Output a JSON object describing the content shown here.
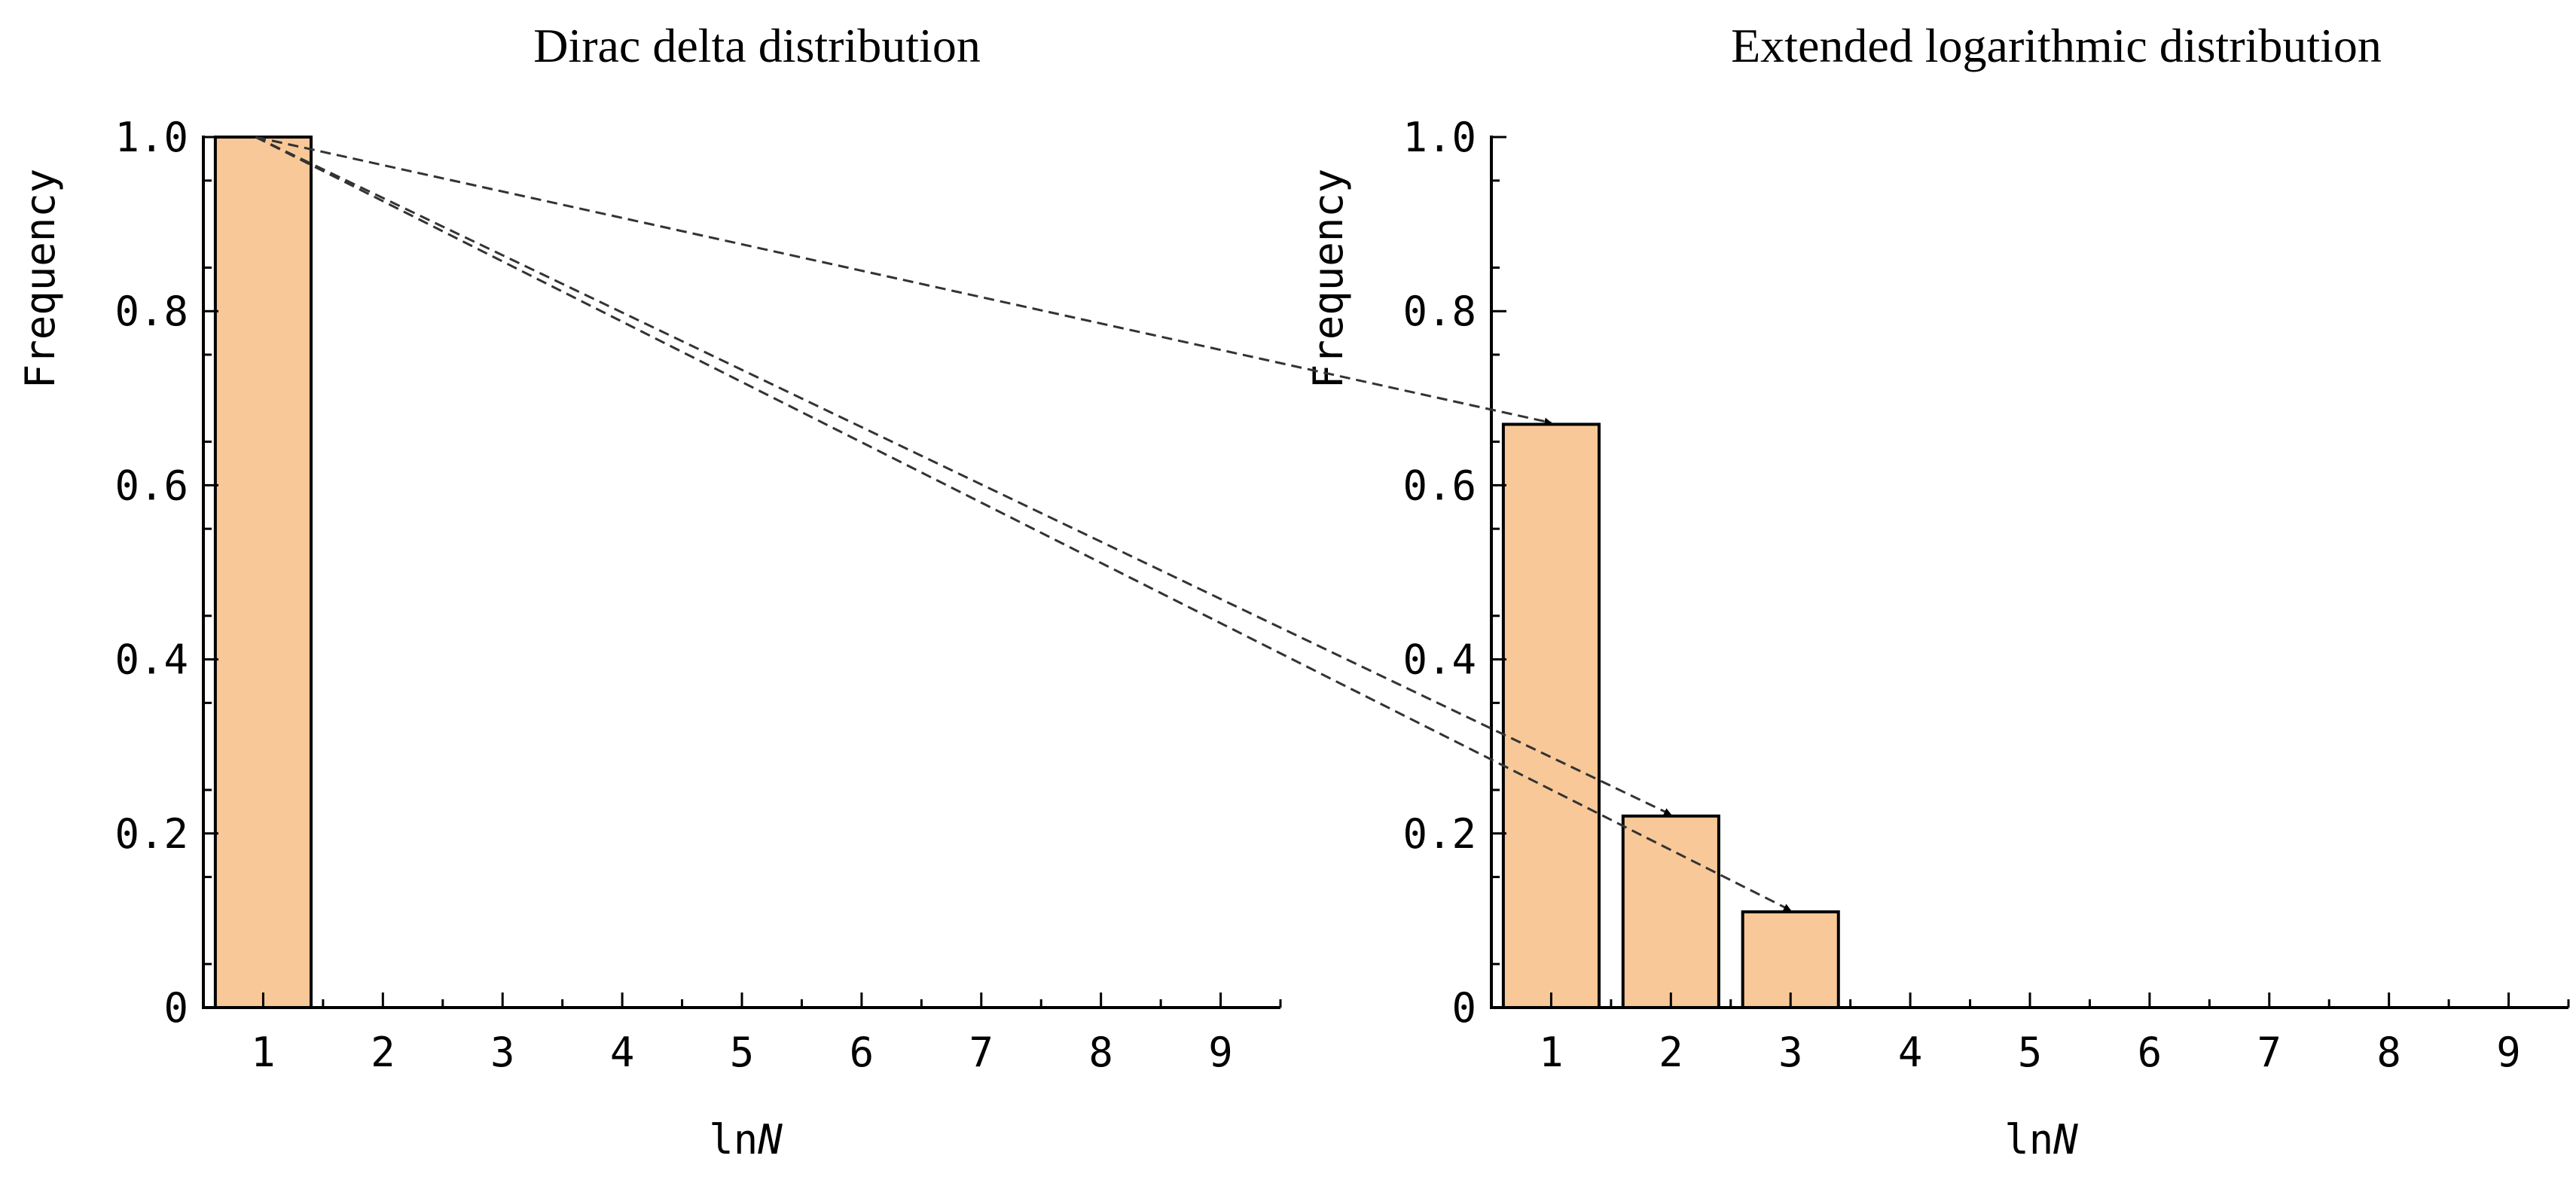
{
  "colors": {
    "bar_fill": "#F8C898",
    "bar_stroke": "#000000",
    "axis": "#000000",
    "arrow": "#333333"
  },
  "chart_data": [
    {
      "type": "bar",
      "title": "Dirac delta distribution",
      "xlabel_prefix": "ln",
      "xlabel_var": "N",
      "ylabel": "Frequency",
      "categories": [
        1,
        2,
        3,
        4,
        5,
        6,
        7,
        8,
        9
      ],
      "values": [
        1.0,
        0,
        0,
        0,
        0,
        0,
        0,
        0,
        0
      ],
      "xlim": [
        0.5,
        9.5
      ],
      "ylim": [
        0,
        1.0
      ],
      "yticks": [
        0,
        0.2,
        0.4,
        0.6,
        0.8,
        1.0
      ],
      "ytick_labels": [
        "0",
        "0.2",
        "0.4",
        "0.6",
        "0.8",
        "1.0"
      ],
      "grid": false
    },
    {
      "type": "bar",
      "title": "Extended logarithmic distribution",
      "xlabel_prefix": "ln",
      "xlabel_var": "N",
      "ylabel": "Frequency",
      "categories": [
        1,
        2,
        3,
        4,
        5,
        6,
        7,
        8,
        9
      ],
      "values": [
        0.67,
        0.22,
        0.11,
        0,
        0,
        0,
        0,
        0,
        0
      ],
      "xlim": [
        0.5,
        9.5
      ],
      "ylim": [
        0,
        1.0
      ],
      "yticks": [
        0,
        0.2,
        0.4,
        0.6,
        0.8,
        1.0
      ],
      "ytick_labels": [
        "0",
        "0.2",
        "0.4",
        "0.6",
        "0.8",
        "1.0"
      ],
      "grid": false
    }
  ],
  "arrows": [
    {
      "from_chart": 0,
      "from_category": 1,
      "to_chart": 1,
      "to_category": 1
    },
    {
      "from_chart": 0,
      "from_category": 1,
      "to_chart": 1,
      "to_category": 2
    },
    {
      "from_chart": 0,
      "from_category": 1,
      "to_chart": 1,
      "to_category": 3
    }
  ]
}
